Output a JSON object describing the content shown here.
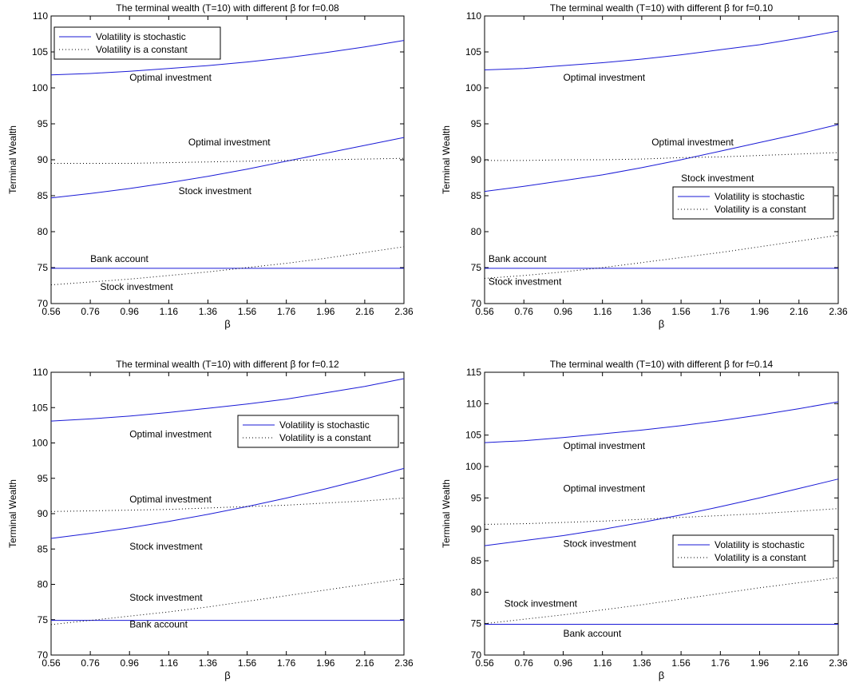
{
  "colors": {
    "stochastic": "#1a1ad6",
    "constant": "#000000",
    "axes": "#000000"
  },
  "chart_data": [
    {
      "type": "line",
      "title": "The terminal wealth (T=10) with different β for f=0.08",
      "xlabel": "β",
      "ylabel": "Terminal Wealth",
      "xlim": [
        0.56,
        2.36
      ],
      "ylim": [
        70,
        110
      ],
      "xticks": [
        "0.56",
        "0.76",
        "0.96",
        "1.16",
        "1.36",
        "1.56",
        "1.76",
        "1.96",
        "2.16",
        "2.36"
      ],
      "yticks": [
        "70",
        "75",
        "80",
        "85",
        "90",
        "95",
        "100",
        "105",
        "110"
      ],
      "grid": false,
      "legend": {
        "position": "top-left",
        "entries": [
          "Volatility is stochastic",
          "Volatility is a constant"
        ]
      },
      "x": [
        0.56,
        0.76,
        0.96,
        1.16,
        1.36,
        1.56,
        1.76,
        1.96,
        2.16,
        2.36
      ],
      "series": [
        {
          "style": "stochastic",
          "values": [
            101.8,
            102.0,
            102.3,
            102.7,
            103.1,
            103.6,
            104.2,
            104.9,
            105.7,
            106.6
          ]
        },
        {
          "style": "stochastic",
          "values": [
            84.7,
            85.3,
            86.0,
            86.8,
            87.7,
            88.7,
            89.8,
            90.9,
            92.0,
            93.1
          ]
        },
        {
          "style": "stochastic",
          "values": [
            74.9,
            74.9,
            74.9,
            74.9,
            74.9,
            74.9,
            74.9,
            74.9,
            74.9,
            74.9
          ]
        },
        {
          "style": "constant",
          "values": [
            89.5,
            89.5,
            89.5,
            89.6,
            89.7,
            89.8,
            89.9,
            90.0,
            90.1,
            90.2
          ]
        },
        {
          "style": "constant",
          "values": [
            72.6,
            73.0,
            73.4,
            73.9,
            74.4,
            75.0,
            75.6,
            76.3,
            77.1,
            77.9
          ]
        }
      ],
      "annotations": [
        {
          "text": "Optimal investment",
          "x": 0.96,
          "y": 101.0
        },
        {
          "text": "Optimal investment",
          "x": 1.26,
          "y": 92.0
        },
        {
          "text": "Stock investment",
          "x": 1.21,
          "y": 85.2
        },
        {
          "text": "Bank account",
          "x": 0.76,
          "y": 75.8
        },
        {
          "text": "Stock investment",
          "x": 0.81,
          "y": 71.9
        }
      ]
    },
    {
      "type": "line",
      "title": "The terminal wealth (T=10) with different β for f=0.10",
      "xlabel": "β",
      "ylabel": "Terminal Wealth",
      "xlim": [
        0.56,
        2.36
      ],
      "ylim": [
        70,
        110
      ],
      "xticks": [
        "0.56",
        "0.76",
        "0.96",
        "1.16",
        "1.36",
        "1.56",
        "1.76",
        "1.96",
        "2.16",
        "2.36"
      ],
      "yticks": [
        "70",
        "75",
        "80",
        "85",
        "90",
        "95",
        "100",
        "105",
        "110"
      ],
      "grid": false,
      "legend": {
        "position": "middle-right",
        "entries": [
          "Volatility is stochastic",
          "Volatility is a constant"
        ]
      },
      "x": [
        0.56,
        0.76,
        0.96,
        1.16,
        1.36,
        1.56,
        1.76,
        1.96,
        2.16,
        2.36
      ],
      "series": [
        {
          "style": "stochastic",
          "values": [
            102.5,
            102.7,
            103.1,
            103.5,
            104.0,
            104.6,
            105.3,
            106.0,
            106.9,
            107.9
          ]
        },
        {
          "style": "stochastic",
          "values": [
            85.6,
            86.3,
            87.1,
            87.9,
            88.9,
            90.0,
            91.2,
            92.4,
            93.6,
            94.9
          ]
        },
        {
          "style": "stochastic",
          "values": [
            74.9,
            74.9,
            74.9,
            74.9,
            74.9,
            74.9,
            74.9,
            74.9,
            74.9,
            74.9
          ]
        },
        {
          "style": "constant",
          "values": [
            89.9,
            89.9,
            90.0,
            90.0,
            90.1,
            90.3,
            90.4,
            90.6,
            90.8,
            91.0
          ]
        },
        {
          "style": "constant",
          "values": [
            73.5,
            73.9,
            74.4,
            75.0,
            75.7,
            76.4,
            77.1,
            77.9,
            78.7,
            79.5
          ]
        }
      ],
      "annotations": [
        {
          "text": "Optimal investment",
          "x": 0.96,
          "y": 101.0
        },
        {
          "text": "Optimal investment",
          "x": 1.41,
          "y": 92.0
        },
        {
          "text": "Stock investment",
          "x": 1.56,
          "y": 87.0
        },
        {
          "text": "Bank account",
          "x": 0.58,
          "y": 75.8
        },
        {
          "text": "Stock investment",
          "x": 0.58,
          "y": 72.6
        }
      ]
    },
    {
      "type": "line",
      "title": "The terminal wealth (T=10) with different β for f=0.12",
      "xlabel": "β",
      "ylabel": "Terminal Wealth",
      "xlim": [
        0.56,
        2.36
      ],
      "ylim": [
        70,
        110
      ],
      "xticks": [
        "0.56",
        "0.76",
        "0.96",
        "1.16",
        "1.36",
        "1.56",
        "1.76",
        "1.96",
        "2.16",
        "2.36"
      ],
      "yticks": [
        "70",
        "75",
        "80",
        "85",
        "90",
        "95",
        "100",
        "105",
        "110"
      ],
      "grid": false,
      "legend": {
        "position": "top-right",
        "entries": [
          "Volatility is stochastic",
          "Volatility is a constant"
        ]
      },
      "x": [
        0.56,
        0.76,
        0.96,
        1.16,
        1.36,
        1.56,
        1.76,
        1.96,
        2.16,
        2.36
      ],
      "series": [
        {
          "style": "stochastic",
          "values": [
            103.1,
            103.4,
            103.8,
            104.3,
            104.9,
            105.5,
            106.2,
            107.1,
            108.0,
            109.1
          ]
        },
        {
          "style": "stochastic",
          "values": [
            86.5,
            87.2,
            88.0,
            88.9,
            89.9,
            91.0,
            92.2,
            93.5,
            94.9,
            96.4
          ]
        },
        {
          "style": "stochastic",
          "values": [
            74.9,
            74.9,
            74.9,
            74.9,
            74.9,
            74.9,
            74.9,
            74.9,
            74.9,
            74.9
          ]
        },
        {
          "style": "constant",
          "values": [
            90.3,
            90.4,
            90.5,
            90.6,
            90.8,
            91.0,
            91.2,
            91.5,
            91.8,
            92.2
          ]
        },
        {
          "style": "constant",
          "values": [
            74.3,
            74.9,
            75.5,
            76.1,
            76.8,
            77.6,
            78.4,
            79.2,
            80.0,
            80.8
          ]
        }
      ],
      "annotations": [
        {
          "text": "Optimal investment",
          "x": 0.96,
          "y": 100.8
        },
        {
          "text": "Optimal investment",
          "x": 0.96,
          "y": 91.6
        },
        {
          "text": "Stock investment",
          "x": 0.96,
          "y": 84.9
        },
        {
          "text": "Stock investment",
          "x": 0.96,
          "y": 77.7
        },
        {
          "text": "Bank account",
          "x": 0.96,
          "y": 73.9
        }
      ]
    },
    {
      "type": "line",
      "title": "The terminal wealth (T=10) with different β for f=0.14",
      "xlabel": "β",
      "ylabel": "Terminal Wealth",
      "xlim": [
        0.56,
        2.36
      ],
      "ylim": [
        70,
        115
      ],
      "xticks": [
        "0.56",
        "0.76",
        "0.96",
        "1.16",
        "1.36",
        "1.56",
        "1.76",
        "1.96",
        "2.16",
        "2.36"
      ],
      "yticks": [
        "70",
        "75",
        "80",
        "85",
        "90",
        "95",
        "100",
        "105",
        "110",
        "115"
      ],
      "grid": false,
      "legend": {
        "position": "middle-right",
        "entries": [
          "Volatility is stochastic",
          "Volatility is a constant"
        ]
      },
      "x": [
        0.56,
        0.76,
        0.96,
        1.16,
        1.36,
        1.56,
        1.76,
        1.96,
        2.16,
        2.36
      ],
      "series": [
        {
          "style": "stochastic",
          "values": [
            103.8,
            104.1,
            104.6,
            105.2,
            105.8,
            106.5,
            107.3,
            108.2,
            109.2,
            110.3
          ]
        },
        {
          "style": "stochastic",
          "values": [
            87.4,
            88.2,
            89.0,
            90.0,
            91.1,
            92.3,
            93.6,
            95.0,
            96.5,
            98.0
          ]
        },
        {
          "style": "stochastic",
          "values": [
            74.9,
            74.9,
            74.9,
            74.9,
            74.9,
            74.9,
            74.9,
            74.9,
            74.9,
            74.9
          ]
        },
        {
          "style": "constant",
          "values": [
            90.8,
            90.9,
            91.1,
            91.3,
            91.6,
            91.9,
            92.2,
            92.5,
            92.9,
            93.3
          ]
        },
        {
          "style": "constant",
          "values": [
            75.0,
            75.7,
            76.4,
            77.2,
            78.0,
            78.9,
            79.8,
            80.7,
            81.5,
            82.3
          ]
        }
      ],
      "annotations": [
        {
          "text": "Optimal investment",
          "x": 0.96,
          "y": 102.8
        },
        {
          "text": "Optimal investment",
          "x": 0.96,
          "y": 96.0
        },
        {
          "text": "Stock investment",
          "x": 0.96,
          "y": 87.2
        },
        {
          "text": "Stock investment",
          "x": 0.66,
          "y": 77.7
        },
        {
          "text": "Bank account",
          "x": 0.96,
          "y": 72.9
        }
      ]
    }
  ]
}
